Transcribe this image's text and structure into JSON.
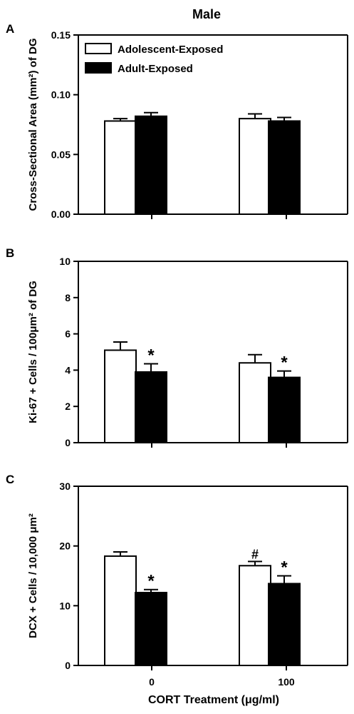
{
  "figure": {
    "title": "Male",
    "xlabel": "CORT Treatment (μg/ml)",
    "legend": [
      {
        "label": "Adolescent-Exposed",
        "color": "#ffffff"
      },
      {
        "label": "Adult-Exposed",
        "color": "#000000"
      }
    ],
    "colors": {
      "adolescent": "#ffffff",
      "adult": "#000000",
      "axis": "#000000"
    }
  },
  "chart_data": [
    {
      "panel_label": "A",
      "type": "bar",
      "ylabel": "Cross-Sectional Area (mm²) of  DG",
      "ylim": [
        0,
        0.15
      ],
      "yticks": [
        0.0,
        0.05,
        0.1,
        0.15
      ],
      "ytick_labels": [
        "0.00",
        "0.05",
        "0.10",
        "0.15"
      ],
      "categories": [
        "0",
        "100"
      ],
      "show_category_labels": false,
      "series": [
        {
          "name": "Adolescent-Exposed",
          "values": [
            0.078,
            0.08
          ],
          "errors": [
            0.002,
            0.004
          ],
          "marks": [
            "",
            ""
          ]
        },
        {
          "name": "Adult-Exposed",
          "values": [
            0.082,
            0.078
          ],
          "errors": [
            0.003,
            0.003
          ],
          "marks": [
            "",
            ""
          ]
        }
      ]
    },
    {
      "panel_label": "B",
      "type": "bar",
      "ylabel": "Ki-67 + Cells / 100μm² of DG",
      "ylim": [
        0,
        10
      ],
      "yticks": [
        0,
        2,
        4,
        6,
        8,
        10
      ],
      "ytick_labels": [
        "0",
        "2",
        "4",
        "6",
        "8",
        "10"
      ],
      "categories": [
        "0",
        "100"
      ],
      "show_category_labels": false,
      "series": [
        {
          "name": "Adolescent-Exposed",
          "values": [
            5.1,
            4.4
          ],
          "errors": [
            0.45,
            0.45
          ],
          "marks": [
            "",
            ""
          ]
        },
        {
          "name": "Adult-Exposed",
          "values": [
            3.9,
            3.6
          ],
          "errors": [
            0.45,
            0.35
          ],
          "marks": [
            "*",
            "*"
          ]
        }
      ]
    },
    {
      "panel_label": "C",
      "type": "bar",
      "ylabel": "DCX + Cells / 10,000 μm²",
      "ylim": [
        0,
        30
      ],
      "yticks": [
        0,
        10,
        20,
        30
      ],
      "ytick_labels": [
        "0",
        "10",
        "20",
        "30"
      ],
      "categories": [
        "0",
        "100"
      ],
      "show_category_labels": true,
      "series": [
        {
          "name": "Adolescent-Exposed",
          "values": [
            18.3,
            16.7
          ],
          "errors": [
            0.7,
            0.7
          ],
          "marks": [
            "",
            "#"
          ]
        },
        {
          "name": "Adult-Exposed",
          "values": [
            12.2,
            13.7
          ],
          "errors": [
            0.5,
            1.3
          ],
          "marks": [
            "*",
            "*"
          ]
        }
      ]
    }
  ]
}
